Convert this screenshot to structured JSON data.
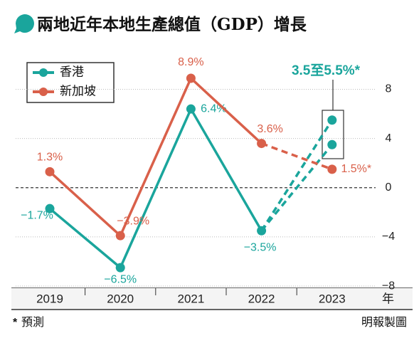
{
  "chart_data": {
    "type": "line",
    "title": "兩地近年本地生產總值（GDP）增長",
    "categories": [
      "2019",
      "2020",
      "2021",
      "2022",
      "2023"
    ],
    "x_unit": "年",
    "series": [
      {
        "name": "香港",
        "color": "#1aa59c",
        "values": [
          -1.7,
          -6.5,
          6.4,
          -3.5,
          null
        ],
        "value_labels": [
          "−1.7%",
          "−6.5%",
          "6.4%",
          "−3.5%",
          null
        ],
        "forecast": [
          3.5,
          5.5
        ],
        "forecast_label": "3.5至5.5%*"
      },
      {
        "name": "新加坡",
        "color": "#d9604a",
        "values": [
          1.3,
          -3.9,
          8.9,
          3.6,
          1.5
        ],
        "value_labels": [
          "1.3%",
          "−3.9%",
          "8.9%",
          "3.6%",
          "1.5%*"
        ]
      }
    ],
    "ylim": [
      -8.2,
      10.2
    ],
    "yticks": [
      {
        "value": -8,
        "label": "−8"
      },
      {
        "value": -4,
        "label": "−4"
      },
      0,
      4,
      8
    ],
    "grid": true,
    "legend": "top-left",
    "footnote_mark": "*",
    "footnote": "預測",
    "source": "明報製圖"
  }
}
